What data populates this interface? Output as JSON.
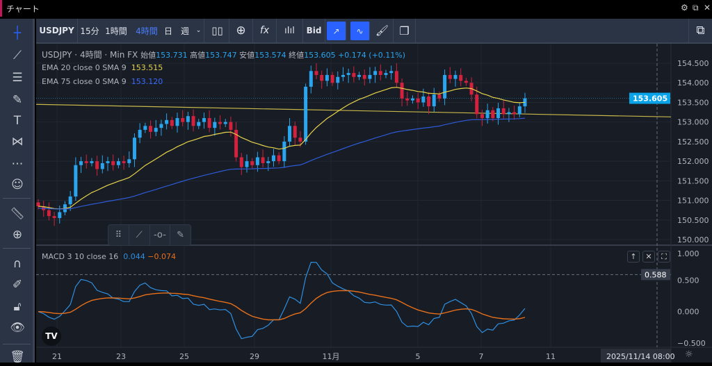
{
  "window": {
    "title": "チャート",
    "icons": [
      "gear-icon",
      "popout-icon",
      "close-icon"
    ]
  },
  "toolbar": {
    "symbol": "USDJPY",
    "intervals": [
      "15分",
      "1時間",
      "4時間",
      "日",
      "週"
    ],
    "active_interval": "4時間",
    "bid_label": "Bid",
    "icons": [
      "candlestick-icon",
      "add-compare-icon",
      "fx-indicator-icon",
      "indicator-template-icon",
      "trend-line-icon",
      "pulse-icon",
      "brush-icon",
      "copy-icon",
      "layout-icon"
    ]
  },
  "left_tools": [
    "crosshair-icon",
    "trend-line-icon",
    "fib-lines-icon",
    "brush-icon",
    "text-icon",
    "pattern-icon",
    "forecast-icon",
    "emoji-icon",
    "ruler-icon",
    "zoom-in-icon",
    "magnet-icon",
    "lock-drawing-icon",
    "unlock-icon",
    "eye-icon",
    "trash-icon"
  ],
  "legend": {
    "symbol": "USDJPY",
    "interval": "4時間",
    "source": "Min FX",
    "open_label": "始値",
    "open": "153.731",
    "high_label": "高値",
    "high": "153.747",
    "low_label": "安値",
    "low": "153.574",
    "close_label": "終値",
    "close": "153.605",
    "change": "+0.174 (+0.11%)",
    "ema20_label": "EMA 20 close 0 SMA 9",
    "ema20_value": "153.515",
    "ema75_label": "EMA 75 close 0 SMA 9",
    "ema75_value": "153.120",
    "macd_label": "MACD 3 10 close 16",
    "macd_value": "0.044",
    "signal_value": "−0.074"
  },
  "colors": {
    "up": "#2aa5ee",
    "down": "#d4213d",
    "ema20": "#e8d44a",
    "ema75": "#2f5bd8",
    "macd": "#2f8fe0",
    "signal": "#e8701a",
    "trendline": "#c9b84a",
    "price_tag": "#0aa3e8"
  },
  "chart_data": {
    "type": "candlestick",
    "closes": [
      150.85,
      150.75,
      150.6,
      150.55,
      150.7,
      150.9,
      151.1,
      151.9,
      152.0,
      151.95,
      152.0,
      151.8,
      151.95,
      152.0,
      151.9,
      152.0,
      151.95,
      152.05,
      152.6,
      152.8,
      152.9,
      152.75,
      152.85,
      152.95,
      153.05,
      152.9,
      153.1,
      153.0,
      153.15,
      152.9,
      153.0,
      153.1,
      152.85,
      153.0,
      152.95,
      153.0,
      152.8,
      152.1,
      151.85,
      152.0,
      151.9,
      152.1,
      151.95,
      152.0,
      152.15,
      152.0,
      152.5,
      152.9,
      152.6,
      152.5,
      153.9,
      154.3,
      154.2,
      154.05,
      154.2,
      154.0,
      154.15,
      154.2,
      154.25,
      154.15,
      154.2,
      154.1,
      154.2,
      154.3,
      154.2,
      154.25,
      154.3,
      154.0,
      153.6,
      153.55,
      153.6,
      153.5,
      153.65,
      153.4,
      153.7,
      153.6,
      154.2,
      154.1,
      154.2,
      154.05,
      154.0,
      153.7,
      153.2,
      153.1,
      153.3,
      153.1,
      153.35,
      153.2,
      153.25,
      153.2,
      153.4,
      153.605
    ],
    "price_ticks": [
      "154.500",
      "154.000",
      "153.500",
      "153.000",
      "152.500",
      "152.000",
      "151.500",
      "151.000",
      "150.500",
      "150.000"
    ],
    "ylim": [
      150.0,
      154.5
    ],
    "current_price": "153.605",
    "trendline": [
      153.45,
      153.13
    ],
    "macd_ticks": [
      "1.000",
      "0.500",
      "0.000",
      "−0.500"
    ],
    "macd_ylim": [
      -0.5,
      1.0
    ],
    "macd_crosshair": "0.588",
    "x_ticks": [
      "21",
      "23",
      "25",
      "29",
      "11月",
      "5",
      "7",
      "11"
    ],
    "crosshair_time": "2025/11/14   08:00"
  }
}
